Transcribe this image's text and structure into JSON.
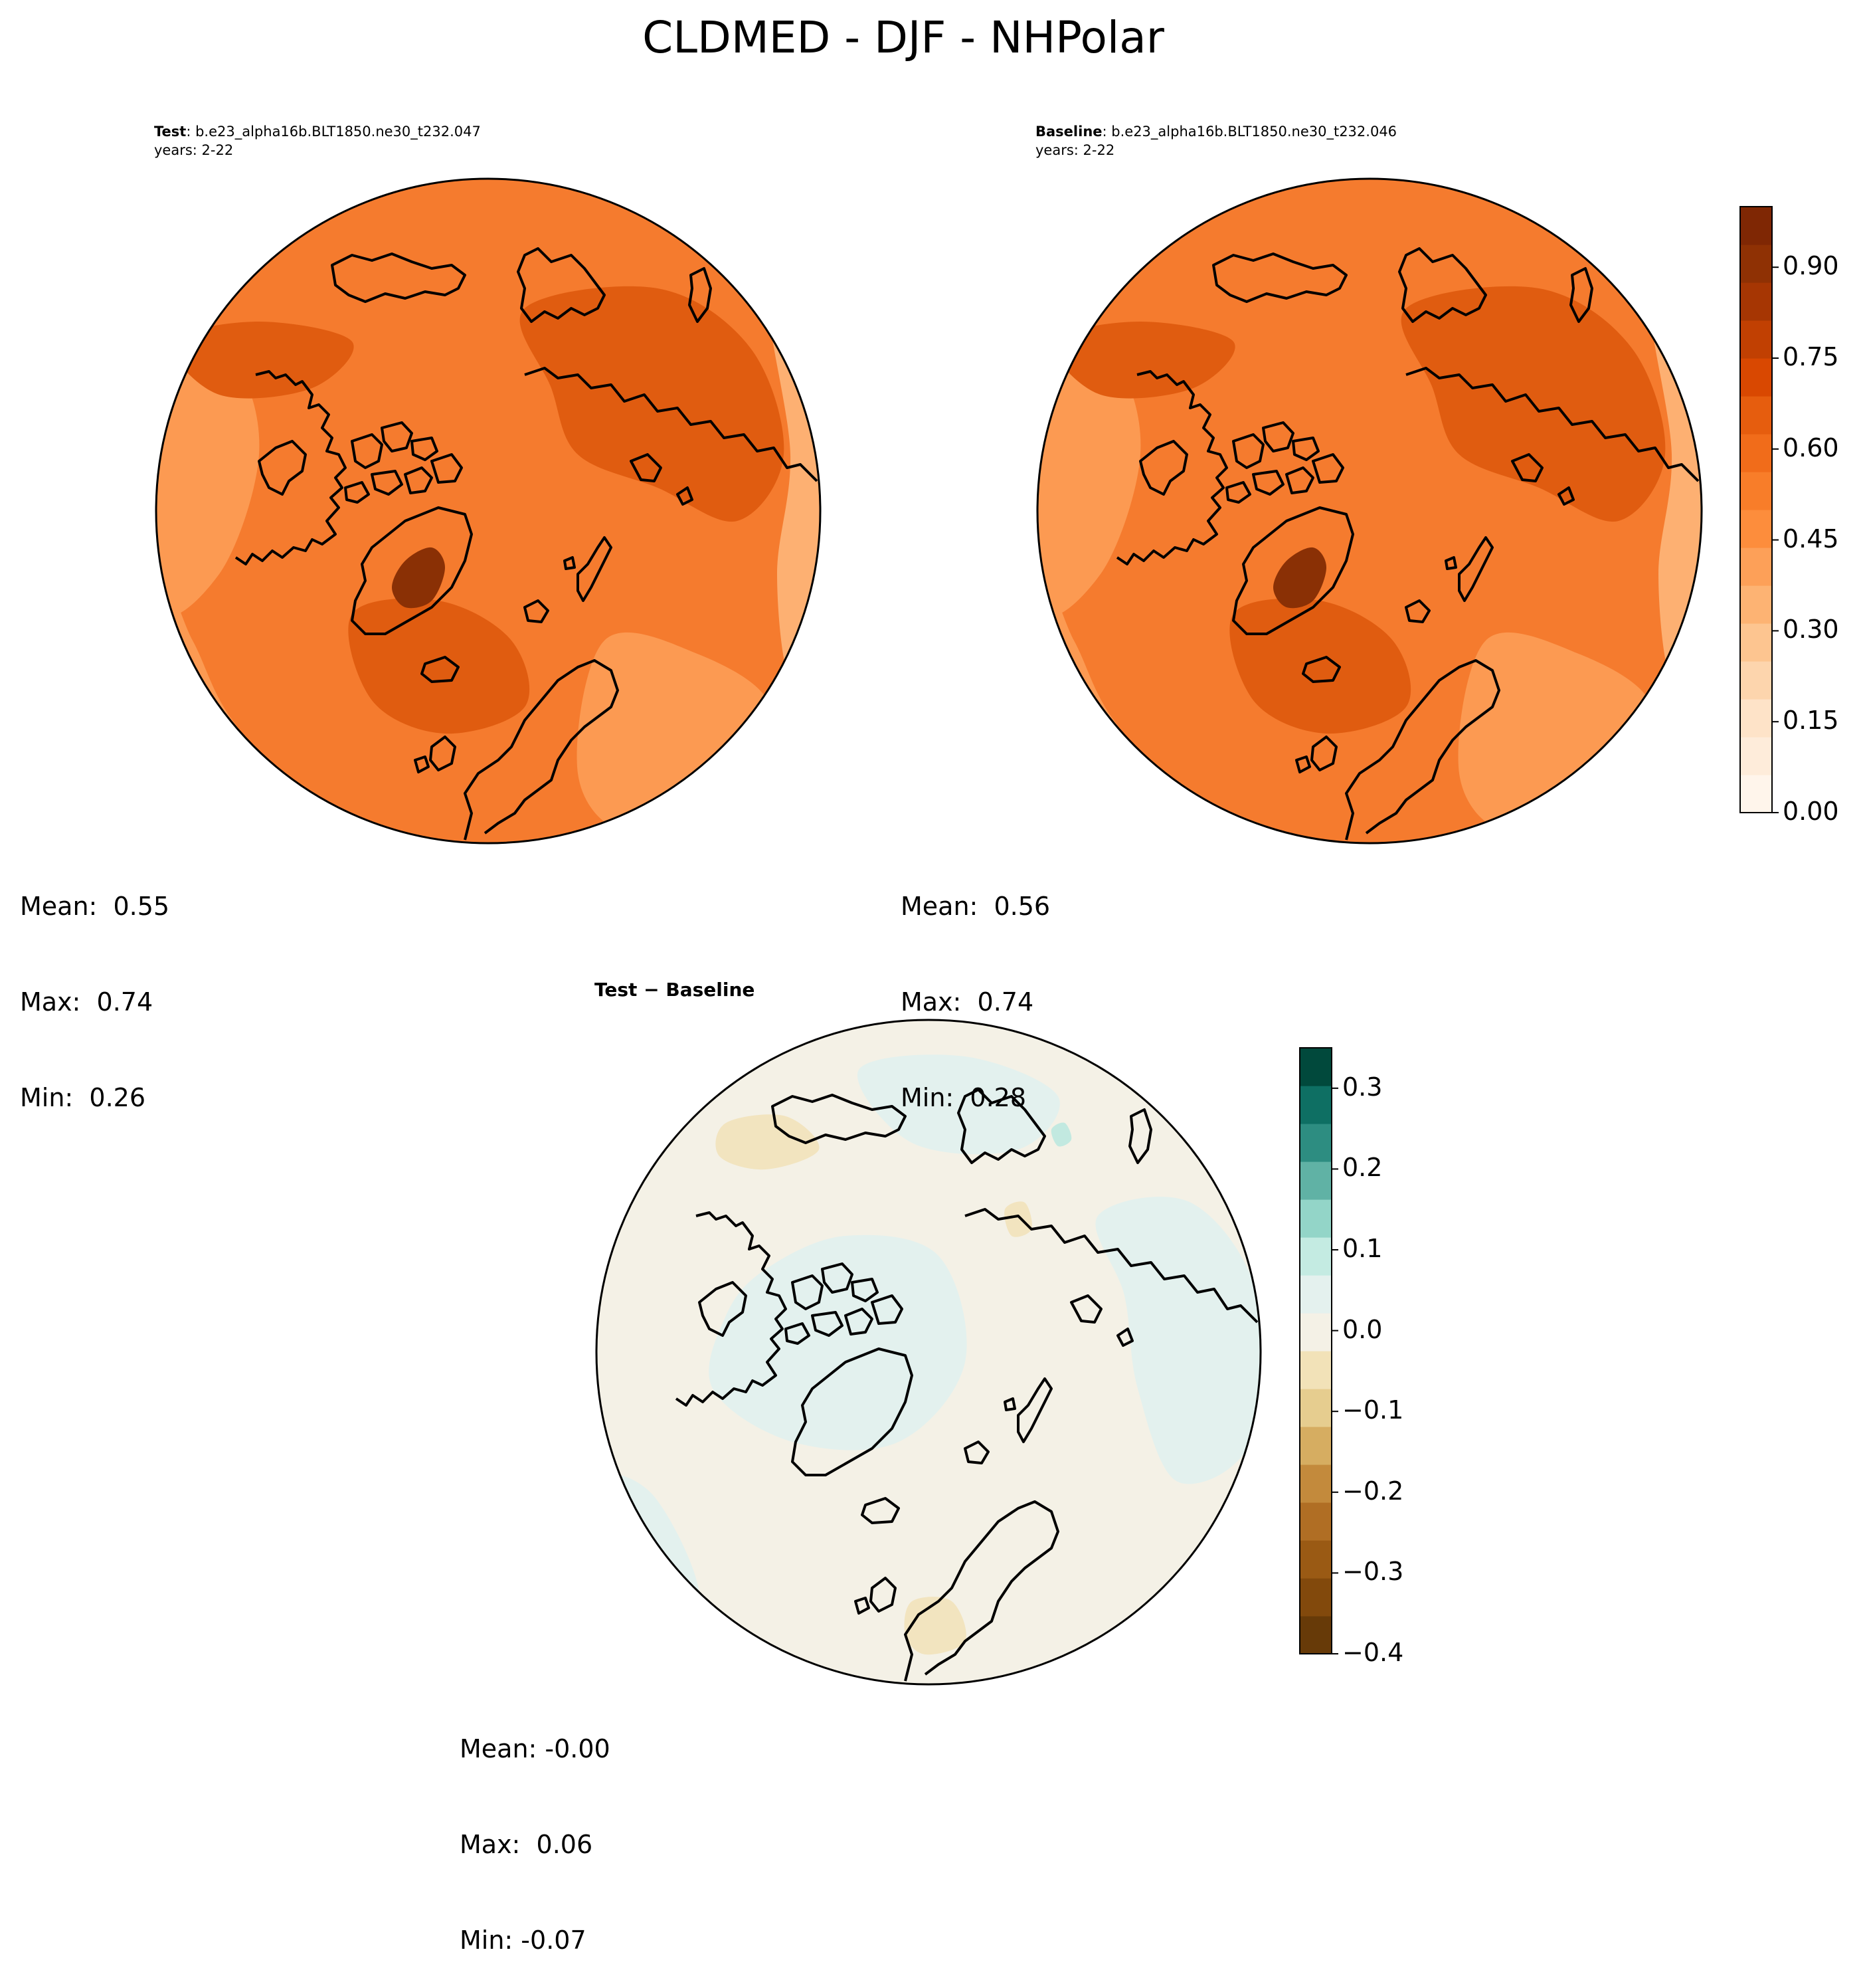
{
  "figure": {
    "title": "CLDMED - DJF - NHPolar"
  },
  "panels": {
    "test": {
      "label": "Test",
      "case": ": b.e23_alpha16b.BLT1850.ne30_t232.047",
      "years": "years: 2-22",
      "stats": {
        "mean": "Mean:  0.55",
        "max": "Max:  0.74",
        "min": "Min:  0.26"
      }
    },
    "baseline": {
      "label": "Baseline",
      "case": ": b.e23_alpha16b.BLT1850.ne30_t232.046",
      "years": "years: 2-22",
      "stats": {
        "mean": "Mean:  0.56",
        "max": "Max:  0.74",
        "min": "Min:  0.28"
      }
    },
    "diff": {
      "title": "Test − Baseline",
      "stats": {
        "mean": "Mean: -0.00",
        "max": "Max:  0.06",
        "min": "Min: -0.07"
      }
    }
  },
  "colorbars": {
    "main": {
      "colormap": "Oranges",
      "range": [
        0,
        1.0
      ],
      "ticks": [
        {
          "value": 0.0,
          "label": "0.00"
        },
        {
          "value": 0.15,
          "label": "0.15"
        },
        {
          "value": 0.3,
          "label": "0.30"
        },
        {
          "value": 0.45,
          "label": "0.45"
        },
        {
          "value": 0.6,
          "label": "0.60"
        },
        {
          "value": 0.75,
          "label": "0.75"
        },
        {
          "value": 0.9,
          "label": "0.90"
        }
      ],
      "colors": [
        "#fff5eb",
        "#feecda",
        "#fee3c8",
        "#fdd5ad",
        "#fdc590",
        "#fdb373",
        "#fda058",
        "#fd8d3c",
        "#f87d29",
        "#f16c1a",
        "#e65d0e",
        "#d94801",
        "#c14002",
        "#a63603",
        "#8f3104",
        "#7f2704"
      ]
    },
    "diff": {
      "colormap": "BrBG",
      "range": [
        -0.4,
        0.35
      ],
      "ticks": [
        {
          "value": -0.4,
          "label": "−0.4"
        },
        {
          "value": -0.3,
          "label": "−0.3"
        },
        {
          "value": -0.2,
          "label": "−0.2"
        },
        {
          "value": -0.1,
          "label": "−0.1"
        },
        {
          "value": 0.0,
          "label": "0.0"
        },
        {
          "value": 0.1,
          "label": "0.1"
        },
        {
          "value": 0.2,
          "label": "0.2"
        },
        {
          "value": 0.3,
          "label": "0.3"
        }
      ],
      "colors": [
        "#673a08",
        "#82490c",
        "#9a5a14",
        "#b06e24",
        "#c38a3c",
        "#d6ad61",
        "#e6cd8f",
        "#f2e2b8",
        "#f4f1e6",
        "#e4f1ee",
        "#c4ebe2",
        "#93d5c8",
        "#60b2a5",
        "#2d8d81",
        "#0e6f63",
        "#01493c"
      ]
    }
  },
  "map_colors": {
    "main_base": "#f57b2e",
    "main_light": "#fc9a52",
    "main_lighter": "#fdb072",
    "main_dark": "#e05c10",
    "main_darkest": "#8a3005",
    "diff_base": "#f4f1e6",
    "diff_pos": "#e3f1ee",
    "diff_pos2": "#c2e9e0",
    "diff_neg": "#f2e4bf",
    "coast": "#000000"
  }
}
